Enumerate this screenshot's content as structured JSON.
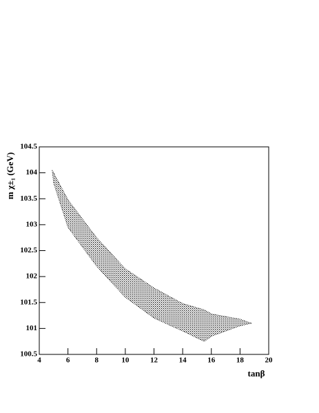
{
  "chart_data": {
    "type": "area",
    "x_label": "tanβ",
    "y_label": "m χ±₁ (GeV)",
    "x": [
      4.9,
      5,
      6,
      8,
      10,
      12,
      14,
      15.5,
      16,
      18,
      18.8
    ],
    "series": [
      {
        "color": "#000000",
        "values": [
          104.05,
          103.8,
          102.95,
          102.2,
          101.6,
          101.2,
          100.95,
          100.75,
          100.85,
          101.05,
          101.1
        ]
      },
      {
        "color": "#000000",
        "values": [
          104.05,
          104.0,
          103.48,
          102.75,
          102.15,
          101.78,
          101.48,
          101.36,
          101.28,
          101.18,
          101.1
        ]
      }
    ],
    "xlim": [
      4,
      20
    ],
    "xticks": [
      4,
      6,
      8,
      10,
      12,
      14,
      16,
      18,
      20
    ],
    "ylim": [
      100.5,
      104.5
    ],
    "yticks": [
      100.5,
      101,
      101.5,
      102,
      102.5,
      103,
      103.5,
      104,
      104.5
    ]
  }
}
